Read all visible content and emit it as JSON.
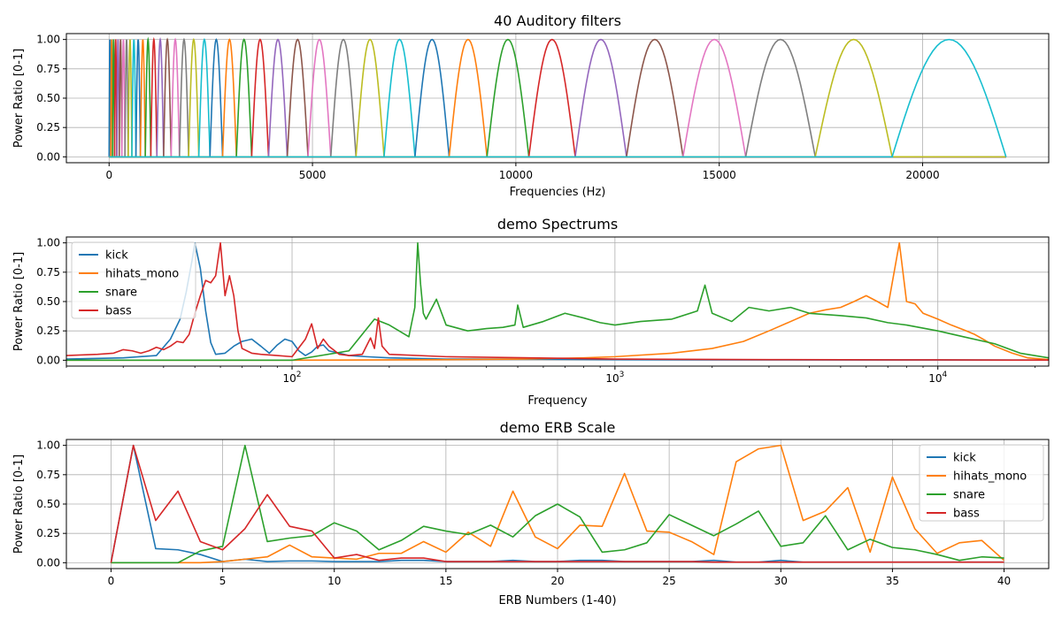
{
  "chart_data": [
    {
      "type": "line",
      "title": "40 Auditory filters",
      "xlabel": "Frequencies (Hz)",
      "ylabel": "Power Ratio [0-1]",
      "xscale": "linear",
      "xlim": [
        -1050,
        23100
      ],
      "ylim": [
        -0.05,
        1.05
      ],
      "xticks": [
        0,
        5000,
        10000,
        15000,
        20000
      ],
      "xtick_labels": [
        "0",
        "5000",
        "10000",
        "15000",
        "20000"
      ],
      "yticks": [
        0,
        0.25,
        0.5,
        0.75,
        1.0
      ],
      "ytick_labels": [
        "0.00",
        "0.25",
        "0.50",
        "0.75",
        "1.00"
      ],
      "grid": true,
      "legend": "none",
      "filter_count": 40,
      "filter_points_hz": [
        0,
        40,
        85,
        135,
        190,
        250,
        315,
        390,
        470,
        560,
        660,
        770,
        890,
        1025,
        1175,
        1340,
        1525,
        1730,
        1955,
        2205,
        2480,
        2790,
        3130,
        3505,
        3920,
        4380,
        4890,
        5450,
        6070,
        6760,
        7520,
        8360,
        9290,
        10320,
        11460,
        12720,
        14110,
        15650,
        17360,
        19250,
        22050
      ],
      "colors": [
        "#1f77b4",
        "#ff7f0e",
        "#2ca02c",
        "#d62728",
        "#9467bd",
        "#8c564b",
        "#e377c2",
        "#7f7f7f",
        "#bcbd22",
        "#17becf"
      ]
    },
    {
      "type": "line",
      "title": "demo Spectrums",
      "xlabel": "Frequency",
      "ylabel": "Power Ratio [0-1]",
      "xscale": "log",
      "xlim": [
        20,
        22050
      ],
      "ylim": [
        -0.05,
        1.05
      ],
      "xticks": [
        100,
        1000,
        10000
      ],
      "xtick_labels_base": "10",
      "xtick_labels_exp": [
        "2",
        "3",
        "4"
      ],
      "yticks": [
        0,
        0.25,
        0.5,
        0.75,
        1.0
      ],
      "ytick_labels": [
        "0.00",
        "0.25",
        "0.50",
        "0.75",
        "1.00"
      ],
      "grid": true,
      "legend": "upper-left",
      "series": [
        {
          "name": "kick",
          "color": "#1f77b4",
          "x": [
            20,
            30,
            38,
            42,
            45,
            47,
            49,
            50,
            52,
            54,
            56,
            58,
            62,
            66,
            70,
            75,
            80,
            85,
            90,
            95,
            100,
            105,
            110,
            115,
            120,
            125,
            130,
            140,
            150,
            170,
            200,
            300,
            500,
            1000,
            3000,
            10000,
            22050
          ],
          "y": [
            0.01,
            0.02,
            0.04,
            0.18,
            0.35,
            0.58,
            0.85,
            1.0,
            0.78,
            0.42,
            0.15,
            0.05,
            0.06,
            0.12,
            0.16,
            0.18,
            0.12,
            0.06,
            0.13,
            0.18,
            0.16,
            0.08,
            0.04,
            0.07,
            0.12,
            0.13,
            0.08,
            0.06,
            0.04,
            0.03,
            0.02,
            0.01,
            0.01,
            0.005,
            0.003,
            0.002,
            0.001
          ]
        },
        {
          "name": "hihats_mono",
          "color": "#ff7f0e",
          "x": [
            20,
            100,
            300,
            500,
            800,
            1000,
            1500,
            2000,
            2500,
            3000,
            3500,
            4000,
            4500,
            5000,
            5500,
            6000,
            6500,
            7000,
            7600,
            8000,
            8500,
            9000,
            10000,
            11000,
            12000,
            13000,
            14000,
            15000,
            17000,
            19000,
            22050
          ],
          "y": [
            0.0,
            0.0,
            0.005,
            0.01,
            0.02,
            0.03,
            0.06,
            0.1,
            0.16,
            0.25,
            0.33,
            0.4,
            0.43,
            0.45,
            0.5,
            0.55,
            0.5,
            0.45,
            1.0,
            0.5,
            0.48,
            0.4,
            0.35,
            0.3,
            0.26,
            0.22,
            0.17,
            0.12,
            0.06,
            0.02,
            0.005
          ]
        },
        {
          "name": "snare",
          "color": "#2ca02c",
          "x": [
            20,
            100,
            150,
            180,
            200,
            230,
            240,
            245,
            250,
            255,
            260,
            280,
            300,
            350,
            400,
            450,
            490,
            500,
            520,
            600,
            700,
            800,
            900,
            1000,
            1200,
            1500,
            1800,
            1900,
            2000,
            2300,
            2600,
            3000,
            3500,
            4000,
            5000,
            6000,
            7000,
            8000,
            10000,
            12000,
            15000,
            18000,
            22050
          ],
          "y": [
            0.0,
            0.0,
            0.08,
            0.35,
            0.3,
            0.2,
            0.45,
            1.0,
            0.65,
            0.4,
            0.35,
            0.52,
            0.3,
            0.25,
            0.27,
            0.28,
            0.3,
            0.47,
            0.28,
            0.33,
            0.4,
            0.36,
            0.32,
            0.3,
            0.33,
            0.35,
            0.42,
            0.64,
            0.4,
            0.33,
            0.45,
            0.42,
            0.45,
            0.4,
            0.38,
            0.36,
            0.32,
            0.3,
            0.25,
            0.2,
            0.14,
            0.06,
            0.02
          ]
        },
        {
          "name": "bass",
          "color": "#d62728",
          "x": [
            20,
            25,
            28,
            30,
            32,
            34,
            36,
            38,
            40,
            42,
            44,
            46,
            48,
            50,
            52,
            54,
            56,
            58,
            60,
            62,
            64,
            66,
            68,
            70,
            75,
            80,
            90,
            100,
            110,
            115,
            120,
            125,
            130,
            140,
            150,
            165,
            175,
            180,
            185,
            190,
            200,
            300,
            1000,
            3000,
            10000,
            22050
          ],
          "y": [
            0.04,
            0.05,
            0.06,
            0.09,
            0.08,
            0.06,
            0.08,
            0.11,
            0.09,
            0.12,
            0.16,
            0.15,
            0.22,
            0.4,
            0.55,
            0.68,
            0.66,
            0.72,
            1.0,
            0.55,
            0.72,
            0.55,
            0.25,
            0.1,
            0.06,
            0.05,
            0.04,
            0.03,
            0.18,
            0.31,
            0.1,
            0.18,
            0.12,
            0.05,
            0.04,
            0.05,
            0.19,
            0.1,
            0.36,
            0.12,
            0.05,
            0.03,
            0.01,
            0.005,
            0.003,
            0.001
          ]
        }
      ]
    },
    {
      "type": "line",
      "title": "demo ERB Scale",
      "xlabel": "ERB Numbers (1-40)",
      "ylabel": "Power Ratio [0-1]",
      "xscale": "linear",
      "xlim": [
        -2,
        42
      ],
      "ylim": [
        -0.05,
        1.05
      ],
      "xticks": [
        0,
        5,
        10,
        15,
        20,
        25,
        30,
        35,
        40
      ],
      "xtick_labels": [
        "0",
        "5",
        "10",
        "15",
        "20",
        "25",
        "30",
        "35",
        "40"
      ],
      "yticks": [
        0,
        0.25,
        0.5,
        0.75,
        1.0
      ],
      "ytick_labels": [
        "0.00",
        "0.25",
        "0.50",
        "0.75",
        "1.00"
      ],
      "grid": true,
      "legend": "upper-right",
      "x": [
        0,
        1,
        2,
        3,
        4,
        5,
        6,
        7,
        8,
        9,
        10,
        11,
        12,
        13,
        14,
        15,
        16,
        17,
        18,
        19,
        20,
        21,
        22,
        23,
        24,
        25,
        26,
        27,
        28,
        29,
        30,
        31,
        32,
        33,
        34,
        35,
        36,
        37,
        38,
        39,
        40
      ],
      "series": [
        {
          "name": "kick",
          "color": "#1f77b4",
          "values": [
            0.0,
            1.0,
            0.12,
            0.11,
            0.07,
            0.01,
            0.03,
            0.01,
            0.015,
            0.015,
            0.01,
            0.01,
            0.01,
            0.02,
            0.02,
            0.01,
            0.01,
            0.01,
            0.02,
            0.01,
            0.01,
            0.02,
            0.02,
            0.01,
            0.01,
            0.01,
            0.01,
            0.02,
            0.005,
            0.005,
            0.02,
            0.005,
            0.005,
            0.005,
            0.005,
            0.005,
            0.005,
            0.005,
            0.005,
            0.005,
            0.005
          ]
        },
        {
          "name": "hihats_mono",
          "color": "#ff7f0e",
          "values": [
            0.0,
            0.0,
            0.0,
            0.0,
            0.0,
            0.01,
            0.03,
            0.05,
            0.15,
            0.05,
            0.04,
            0.03,
            0.08,
            0.08,
            0.18,
            0.09,
            0.26,
            0.14,
            0.61,
            0.22,
            0.12,
            0.32,
            0.31,
            0.76,
            0.27,
            0.26,
            0.18,
            0.07,
            0.86,
            0.97,
            1.0,
            0.36,
            0.44,
            0.64,
            0.09,
            0.73,
            0.29,
            0.08,
            0.17,
            0.19,
            0.02
          ]
        },
        {
          "name": "snare",
          "color": "#2ca02c",
          "values": [
            0.0,
            0.0,
            0.0,
            0.0,
            0.1,
            0.14,
            1.0,
            0.18,
            0.21,
            0.23,
            0.34,
            0.27,
            0.11,
            0.19,
            0.31,
            0.27,
            0.24,
            0.32,
            0.22,
            0.4,
            0.5,
            0.39,
            0.09,
            0.11,
            0.17,
            0.41,
            0.32,
            0.23,
            0.33,
            0.44,
            0.14,
            0.17,
            0.4,
            0.11,
            0.2,
            0.13,
            0.11,
            0.07,
            0.02,
            0.05,
            0.04
          ]
        },
        {
          "name": "bass",
          "color": "#d62728",
          "values": [
            0.0,
            1.0,
            0.36,
            0.61,
            0.18,
            0.11,
            0.29,
            0.58,
            0.31,
            0.27,
            0.04,
            0.07,
            0.02,
            0.04,
            0.04,
            0.01,
            0.01,
            0.01,
            0.01,
            0.01,
            0.01,
            0.01,
            0.01,
            0.01,
            0.01,
            0.01,
            0.01,
            0.005,
            0.005,
            0.005,
            0.005,
            0.005,
            0.005,
            0.005,
            0.005,
            0.005,
            0.005,
            0.005,
            0.005,
            0.005,
            0.005
          ]
        }
      ]
    }
  ]
}
